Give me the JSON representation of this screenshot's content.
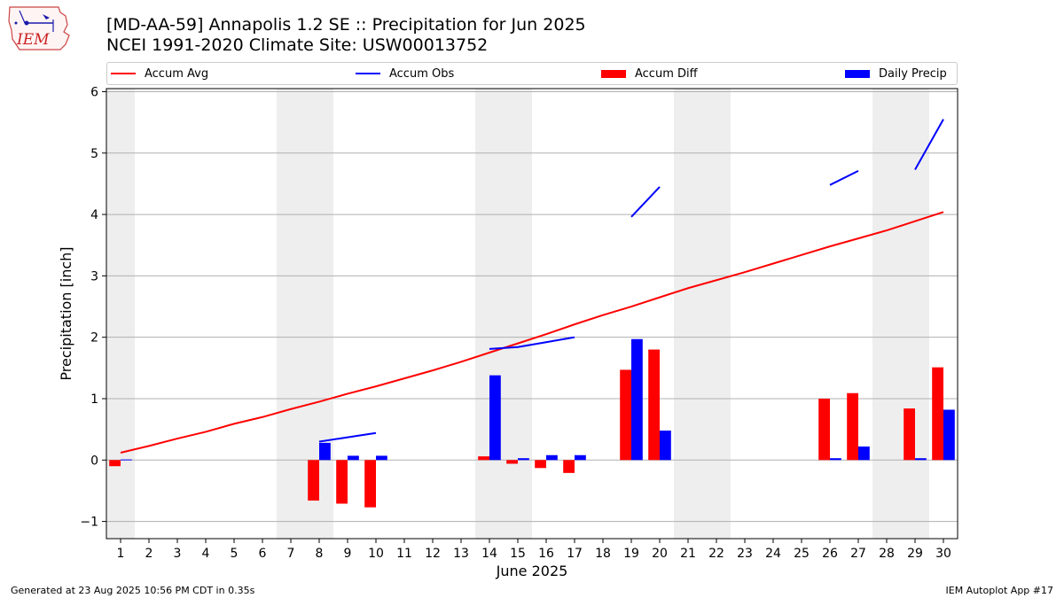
{
  "header": {
    "title_line1": "[MD-AA-59] Annapolis 1.2 SE :: Precipitation for Jun 2025",
    "title_line2": "NCEI 1991-2020 Climate Site: USW00013752",
    "logo_text": "IEM"
  },
  "legend": {
    "placement": "top",
    "items": [
      {
        "label": "Accum Avg",
        "kind": "line",
        "color": "#ff0000"
      },
      {
        "label": "Accum Obs",
        "kind": "line",
        "color": "#0000ff"
      },
      {
        "label": "Accum Diff",
        "kind": "box",
        "color": "#ff0000"
      },
      {
        "label": "Daily Precip",
        "kind": "box",
        "color": "#0000ff"
      }
    ]
  },
  "footer": {
    "left": "Generated at 23 Aug 2025 10:56 PM CDT in 0.35s",
    "right": "IEM Autoplot App #17"
  },
  "chart_data": {
    "type": "bar",
    "xlabel": "June 2025",
    "ylabel": "Precipitation [inch]",
    "ylim": [
      -1.28,
      6.05
    ],
    "yticks": [
      -1,
      0,
      1,
      2,
      3,
      4,
      5,
      6
    ],
    "x": [
      1,
      2,
      3,
      4,
      5,
      6,
      7,
      8,
      9,
      10,
      11,
      12,
      13,
      14,
      15,
      16,
      17,
      18,
      19,
      20,
      21,
      22,
      23,
      24,
      25,
      26,
      27,
      28,
      29,
      30
    ],
    "grid": "horizontal",
    "weekend_shading": [
      [
        1,
        1
      ],
      [
        7,
        8
      ],
      [
        14,
        15
      ],
      [
        21,
        22
      ],
      [
        28,
        29
      ]
    ],
    "series": [
      {
        "name": "Accum Avg",
        "kind": "line",
        "color": "#ff0000",
        "values": [
          0.12,
          0.23,
          0.35,
          0.46,
          0.59,
          0.7,
          0.83,
          0.95,
          1.08,
          1.2,
          1.33,
          1.46,
          1.6,
          1.75,
          1.9,
          2.05,
          2.21,
          2.36,
          2.5,
          2.65,
          2.8,
          2.93,
          3.06,
          3.2,
          3.34,
          3.48,
          3.61,
          3.74,
          3.89,
          4.04
        ]
      },
      {
        "name": "Accum Obs",
        "kind": "line",
        "color": "#0000ff",
        "values": [
          null,
          null,
          null,
          null,
          null,
          null,
          null,
          0.3,
          0.37,
          0.44,
          null,
          null,
          null,
          1.81,
          1.84,
          1.92,
          2.0,
          null,
          3.96,
          4.45,
          null,
          null,
          null,
          null,
          null,
          4.48,
          4.71,
          null,
          4.73,
          5.55
        ]
      },
      {
        "name": "Accum Diff",
        "kind": "bar",
        "color": "#ff0000",
        "values": [
          -0.1,
          null,
          null,
          null,
          null,
          null,
          null,
          -0.66,
          -0.71,
          -0.77,
          null,
          null,
          null,
          0.06,
          -0.06,
          -0.13,
          -0.21,
          null,
          1.47,
          1.8,
          null,
          null,
          null,
          null,
          null,
          1.0,
          1.09,
          null,
          0.84,
          1.51
        ]
      },
      {
        "name": "Daily Precip",
        "kind": "bar",
        "color": "#0000ff",
        "values": [
          0.01,
          null,
          null,
          null,
          null,
          null,
          null,
          0.28,
          0.07,
          0.07,
          null,
          null,
          null,
          1.38,
          0.03,
          0.08,
          0.08,
          null,
          1.97,
          0.48,
          null,
          null,
          null,
          null,
          null,
          0.03,
          0.22,
          null,
          0.03,
          0.82
        ]
      }
    ]
  }
}
